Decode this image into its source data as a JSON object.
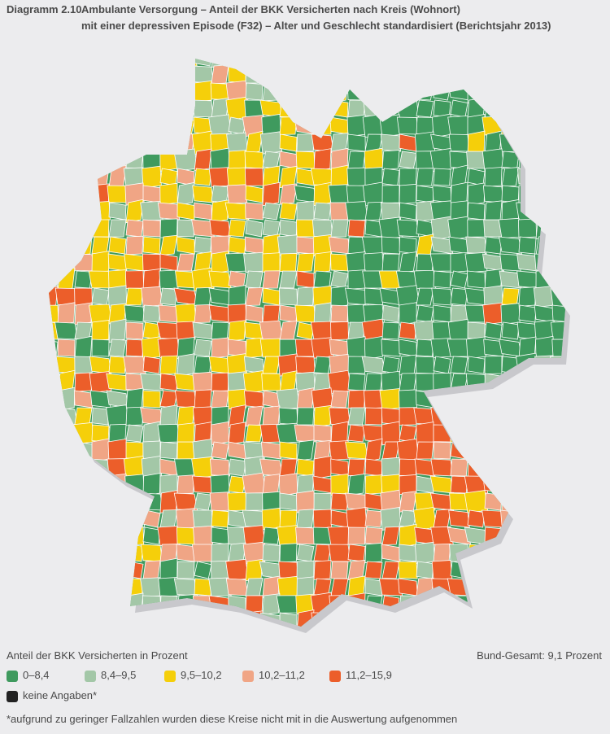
{
  "header": {
    "label": "Diagramm 2.10",
    "title_line1": "Ambulante Versorgung – Anteil der BKK Versicherten nach Kreis (Wohnort)",
    "title_line2": "mit einer depressiven Episode (F32) – Alter und Geschlecht standardisiert (Berichtsjahr 2013)"
  },
  "legend": {
    "title": "Anteil der BKK Versicherten in Prozent",
    "items": [
      {
        "label": "0–8,4",
        "color": "#3f9a5e"
      },
      {
        "label": "8,4–9,5",
        "color": "#a3c7a7"
      },
      {
        "label": "9,5–10,2",
        "color": "#f5cf0a"
      },
      {
        "label": "10,2–11,2",
        "color": "#f0a585"
      },
      {
        "label": "11,2–15,9",
        "color": "#ec5e2a"
      },
      {
        "label": "keine Angaben*",
        "color": "#222222"
      }
    ]
  },
  "summary": "Bund-Gesamt: 9,1 Prozent",
  "footnote": "*aufgrund zu geringer Fallzahlen wurden diese Kreise nicht mit in die Auswertung aufgenommen"
}
